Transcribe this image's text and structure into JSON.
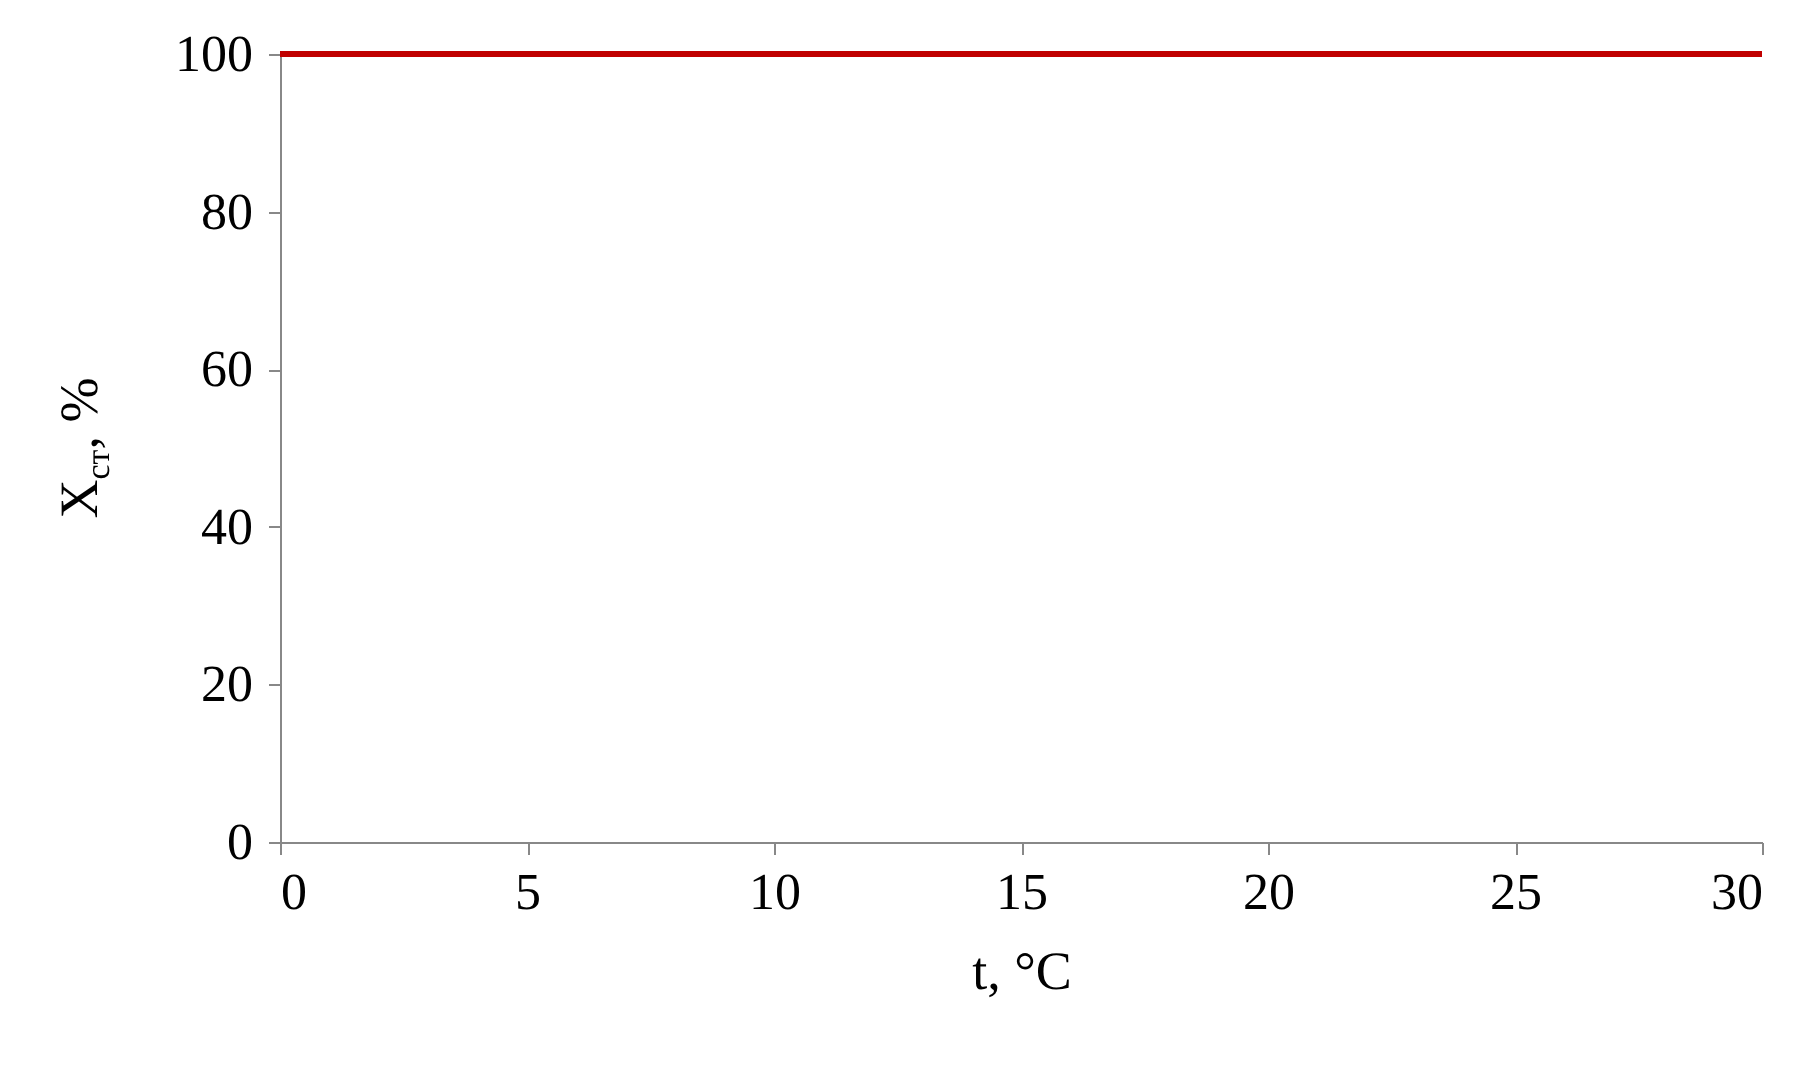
{
  "chart_data": {
    "type": "line",
    "xlabel": "t, °C",
    "ylabel": "X$_{ст}$, %",
    "x": [
      0,
      30
    ],
    "series": [
      {
        "color": "#c00000",
        "values": [
          100,
          100
        ]
      }
    ],
    "xlim": [
      0,
      30
    ],
    "xticks": [
      0,
      5,
      10,
      15,
      20,
      25,
      30
    ],
    "ylim": [
      0,
      100
    ],
    "yticks": [
      0,
      20,
      40,
      60,
      80,
      100
    ],
    "grid": false,
    "marker": "none",
    "line_style": "solid"
  }
}
